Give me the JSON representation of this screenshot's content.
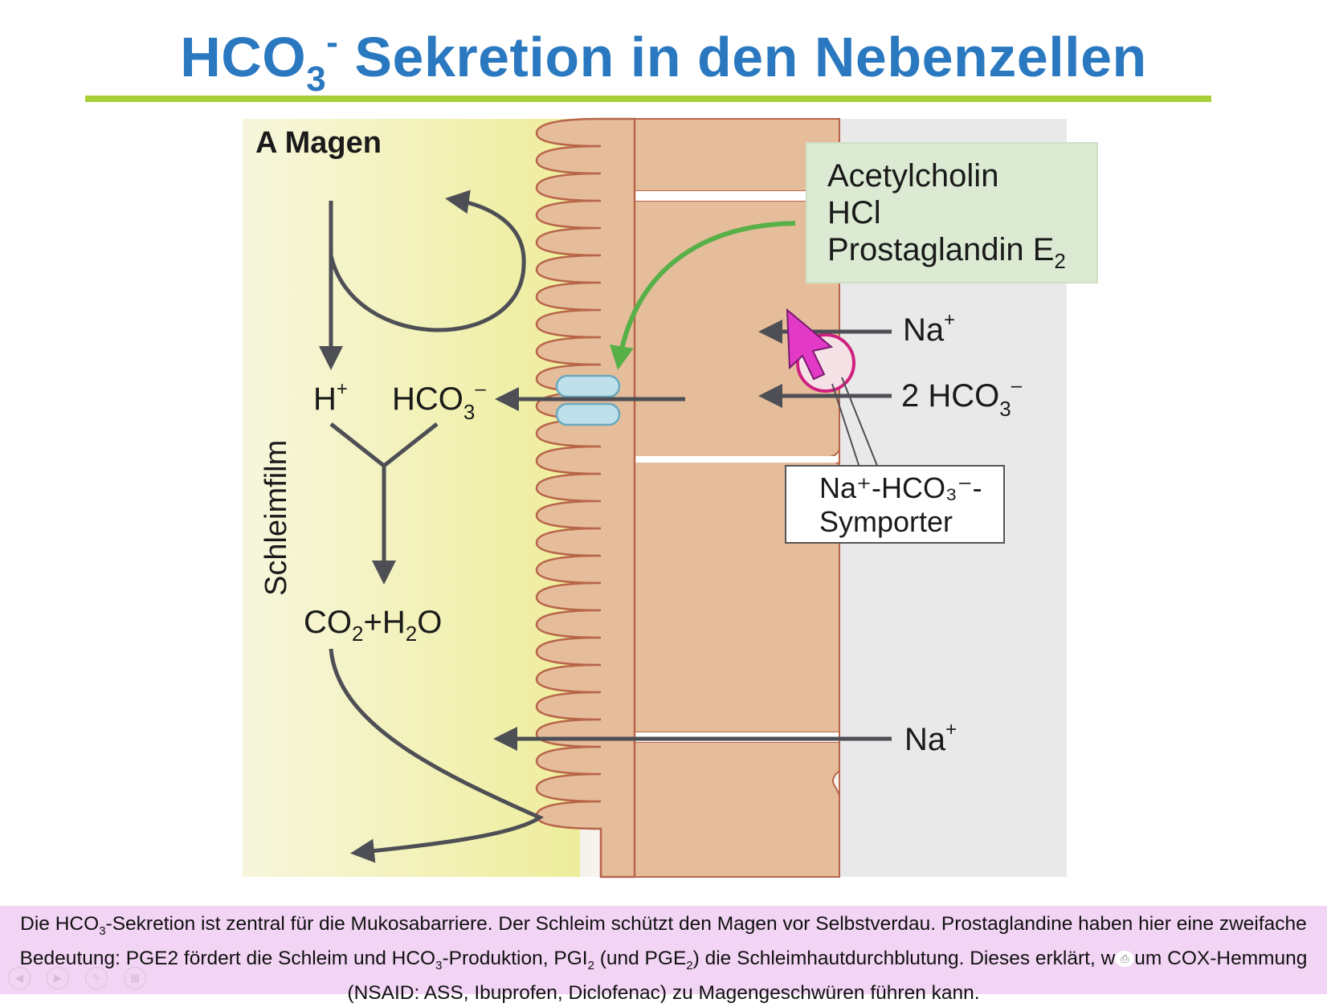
{
  "slide": {
    "title_prefix": "HCO",
    "title_sub": "3",
    "title_sup": "-",
    "title_rest": " Sekretion in den Nebenzellen"
  },
  "diagram": {
    "panel_label": "A  Magen",
    "mucus_label": "Schleimfilm",
    "stimuli": [
      "Acetylcholin",
      "HCl",
      "Prostaglandin E"
    ],
    "stimuli_sub": "2",
    "h_ion": "H",
    "h_ion_sup": "+",
    "bicarb": "HCO",
    "bicarb_sub": "3",
    "bicarb_sup": "–",
    "co2_h2o": "CO",
    "co2_sub": "2",
    "plus_h2o": "+H",
    "h2o_sub": "2",
    "h2o_o": "O",
    "na_top": "Na",
    "na_top_sup": "+",
    "bicarb_in": "2 HCO",
    "bicarb_in_sub": "3",
    "bicarb_in_sup": "–",
    "symporter_line1": "Na⁺-HCO₃⁻-",
    "symporter_line2": "Symporter",
    "na_bottom": "Na",
    "na_bottom_sup": "+"
  },
  "caption": {
    "text_1": "Die HCO",
    "sub_1": "3",
    "text_2": "-Sekretion ist zentral für die Mukosabarriere. Der Schleim schützt den Magen vor Selbstverdau. Prostaglandine haben hier eine zweifache Bedeutung: PGE2 fördert die Schleim und HCO",
    "sub_2": "3",
    "text_3": "-Produktion, PGI",
    "sub_3": "2",
    "text_4": " (und PGE",
    "sub_4": "2",
    "text_5": ") die Schleimhautdurchblutung. Dieses erklärt, w",
    "text_6": "um COX-Hemmung (NSAID: ASS, Ibuprofen, Diclofenac) zu Magengeschwüren führen kann."
  },
  "colors": {
    "title_blue": "#2a78c0",
    "rule_green": "#a9cf38",
    "cell_tan": "#e7bf9c",
    "cell_outline": "#b8654a",
    "mucus_yellow": "#f2f1b4",
    "gray_side": "#e9e9ea",
    "stimuli_box": "#dcead3",
    "green_arrow": "#58b048",
    "cursor_magenta": "#e23ac7",
    "caption_bg": "#f2d4f4"
  },
  "icons": [
    "mouse-cursor-icon",
    "prev-icon",
    "next-icon",
    "pen-icon",
    "grid-icon",
    "camera-icon"
  ]
}
